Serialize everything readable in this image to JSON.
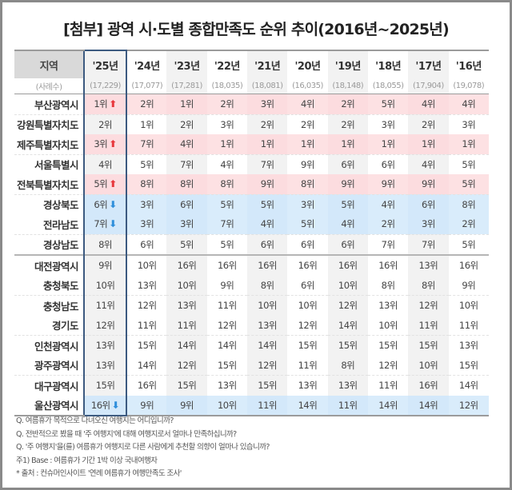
{
  "title": "[첨부] 광역 시·도별 종합만족도 순위 추이(2016년~2025년)",
  "table": {
    "region_header": "지역",
    "sample_label": "(사례수)",
    "years": [
      {
        "label": "'25년",
        "sample": "(17,229)"
      },
      {
        "label": "'24년",
        "sample": "(17,077)"
      },
      {
        "label": "'23년",
        "sample": "(17,281)"
      },
      {
        "label": "'22년",
        "sample": "(18,035)"
      },
      {
        "label": "'21년",
        "sample": "(18,081)"
      },
      {
        "label": "'20년",
        "sample": "(16,035)"
      },
      {
        "label": "'19년",
        "sample": "(18,148)"
      },
      {
        "label": "'18년",
        "sample": "(18,055)"
      },
      {
        "label": "'17년",
        "sample": "(17,904)"
      },
      {
        "label": "'16년",
        "sample": "(19,078)"
      }
    ],
    "rows": [
      {
        "region": "부산광역시",
        "trend": "up",
        "ranks": [
          "1위",
          "2위",
          "1위",
          "2위",
          "3위",
          "4위",
          "2위",
          "5위",
          "4위",
          "4위"
        ]
      },
      {
        "region": "강원특별자치도",
        "trend": "none",
        "ranks": [
          "2위",
          "1위",
          "2위",
          "3위",
          "2위",
          "2위",
          "2위",
          "3위",
          "2위",
          "3위"
        ]
      },
      {
        "region": "제주특별자치도",
        "trend": "up",
        "ranks": [
          "3위",
          "7위",
          "4위",
          "1위",
          "1위",
          "1위",
          "1위",
          "1위",
          "1위",
          "1위"
        ]
      },
      {
        "region": "서울특별시",
        "trend": "none",
        "ranks": [
          "4위",
          "5위",
          "7위",
          "4위",
          "7위",
          "9위",
          "6위",
          "6위",
          "4위",
          "5위"
        ]
      },
      {
        "region": "전북특별자치도",
        "trend": "up",
        "ranks": [
          "5위",
          "8위",
          "8위",
          "8위",
          "9위",
          "8위",
          "9위",
          "9위",
          "9위",
          "5위"
        ]
      },
      {
        "region": "경상북도",
        "trend": "down",
        "ranks": [
          "6위",
          "3위",
          "6위",
          "5위",
          "5위",
          "3위",
          "5위",
          "4위",
          "6위",
          "8위"
        ]
      },
      {
        "region": "전라남도",
        "trend": "down",
        "ranks": [
          "7위",
          "3위",
          "3위",
          "7위",
          "4위",
          "5위",
          "4위",
          "2위",
          "3위",
          "2위"
        ]
      },
      {
        "region": "경상남도",
        "trend": "none",
        "ranks": [
          "8위",
          "6위",
          "5위",
          "5위",
          "6위",
          "6위",
          "6위",
          "7위",
          "7위",
          "5위"
        ]
      },
      {
        "region": "대전광역시",
        "trend": "none",
        "ranks": [
          "9위",
          "10위",
          "16위",
          "16위",
          "16위",
          "16위",
          "16위",
          "16위",
          "13위",
          "16위"
        ]
      },
      {
        "region": "충청북도",
        "trend": "none",
        "ranks": [
          "10위",
          "13위",
          "10위",
          "9위",
          "8위",
          "6위",
          "10위",
          "8위",
          "8위",
          "9위"
        ]
      },
      {
        "region": "충청남도",
        "trend": "none",
        "ranks": [
          "11위",
          "12위",
          "13위",
          "11위",
          "10위",
          "10위",
          "12위",
          "13위",
          "12위",
          "10위"
        ]
      },
      {
        "region": "경기도",
        "trend": "none",
        "ranks": [
          "12위",
          "11위",
          "11위",
          "12위",
          "13위",
          "12위",
          "14위",
          "10위",
          "11위",
          "11위"
        ]
      },
      {
        "region": "인천광역시",
        "trend": "none",
        "ranks": [
          "13위",
          "15위",
          "14위",
          "14위",
          "14위",
          "15위",
          "15위",
          "15위",
          "15위",
          "13위"
        ]
      },
      {
        "region": "광주광역시",
        "trend": "none",
        "ranks": [
          "13위",
          "14위",
          "12위",
          "15위",
          "12위",
          "11위",
          "8위",
          "12위",
          "10위",
          "15위"
        ]
      },
      {
        "region": "대구광역시",
        "trend": "none",
        "ranks": [
          "15위",
          "16위",
          "15위",
          "13위",
          "15위",
          "13위",
          "13위",
          "11위",
          "16위",
          "14위"
        ]
      },
      {
        "region": "울산광역시",
        "trend": "down",
        "ranks": [
          "16위",
          "9위",
          "9위",
          "10위",
          "11위",
          "14위",
          "11위",
          "14위",
          "14위",
          "12위"
        ]
      }
    ],
    "arrow_up": "⬆",
    "arrow_down": "⬇",
    "colors": {
      "up": "#e8383d",
      "down": "#2f8fdb",
      "highlight_border": "#3c5a80"
    }
  },
  "notes": [
    "Q. 여름휴가 목적으로 다녀오신 여행지는 어디입니까?",
    "Q. 전반적으로 봤을 때 '주 여행지'에 대해 여행지로서 얼마나 만족하십니까?",
    "Q. '주 여행지'을(를) 여름휴가 여행지로 다른 사람에게 추천할 의향이 얼마나 있습니까?",
    "주1) Base : 여름휴가 기간 1박 이상 국내여행자",
    "* 출처 : 컨슈머인사이트 '연례 여름휴가 여행만족도 조사'"
  ]
}
